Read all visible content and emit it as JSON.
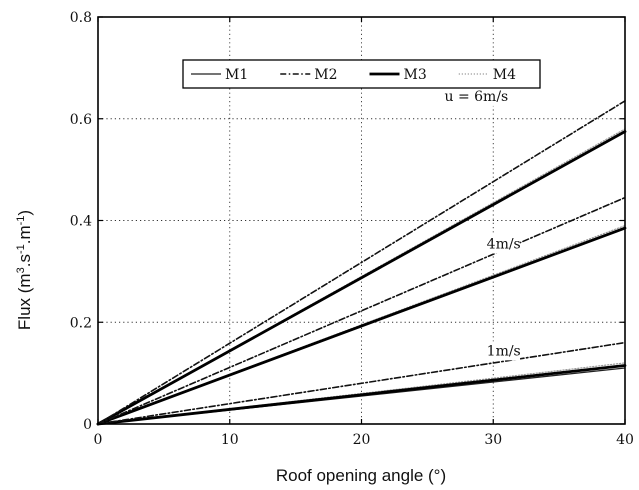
{
  "chart_data": {
    "type": "line",
    "title": "",
    "xlabel": "Roof opening angle (°)",
    "ylabel_main": "Flux (m",
    "ylabel_sup1": "3",
    "ylabel_mid1": ".s",
    "ylabel_sup2": "-1",
    "ylabel_mid2": ".m",
    "ylabel_sup3": "-1",
    "ylabel_end": ")",
    "xlim": [
      0,
      40
    ],
    "ylim": [
      0,
      0.8
    ],
    "xticks": [
      0,
      10,
      20,
      30,
      40
    ],
    "xtick_labels": [
      "0",
      "10",
      "20",
      "30",
      "40"
    ],
    "yticks": [
      0,
      0.2,
      0.4,
      0.6,
      0.8
    ],
    "ytick_labels": [
      "0",
      "0.2",
      "0.4",
      "0.6",
      "0.8"
    ],
    "grid": true,
    "legend_position": "top-center",
    "legend": [
      {
        "name": "M1",
        "style": "solid-thin"
      },
      {
        "name": "M2",
        "style": "dashdot"
      },
      {
        "name": "M3",
        "style": "solid-thick"
      },
      {
        "name": "M4",
        "style": "dotted-gray"
      }
    ],
    "annotations": [
      {
        "text": "u = 6m/s",
        "x": 26.3,
        "y": 0.635
      },
      {
        "text": "4m/s",
        "x": 29.5,
        "y": 0.345
      },
      {
        "text": "1m/s",
        "x": 29.5,
        "y": 0.135
      }
    ],
    "series": [
      {
        "name": "M1",
        "group": "u = 6m/s",
        "x": [
          0,
          40
        ],
        "y": [
          0,
          0.575
        ]
      },
      {
        "name": "M2",
        "group": "u = 6m/s",
        "x": [
          0,
          40
        ],
        "y": [
          0,
          0.635
        ]
      },
      {
        "name": "M3",
        "group": "u = 6m/s",
        "x": [
          0,
          40
        ],
        "y": [
          0,
          0.575
        ]
      },
      {
        "name": "M4",
        "group": "u = 6m/s",
        "x": [
          0,
          40
        ],
        "y": [
          0,
          0.58
        ]
      },
      {
        "name": "M1",
        "group": "4m/s",
        "x": [
          0,
          40
        ],
        "y": [
          0,
          0.385
        ]
      },
      {
        "name": "M2",
        "group": "4m/s",
        "x": [
          0,
          40
        ],
        "y": [
          0,
          0.445
        ]
      },
      {
        "name": "M3",
        "group": "4m/s",
        "x": [
          0,
          40
        ],
        "y": [
          0,
          0.385
        ]
      },
      {
        "name": "M4",
        "group": "4m/s",
        "x": [
          0,
          40
        ],
        "y": [
          0,
          0.39
        ]
      },
      {
        "name": "M1",
        "group": "1m/s",
        "x": [
          0,
          40
        ],
        "y": [
          0,
          0.11
        ]
      },
      {
        "name": "M2",
        "group": "1m/s",
        "x": [
          0,
          40
        ],
        "y": [
          0,
          0.16
        ]
      },
      {
        "name": "M3",
        "group": "1m/s",
        "x": [
          0,
          40
        ],
        "y": [
          0,
          0.115
        ]
      },
      {
        "name": "M4",
        "group": "1m/s",
        "x": [
          0,
          40
        ],
        "y": [
          0,
          0.12
        ]
      }
    ]
  }
}
